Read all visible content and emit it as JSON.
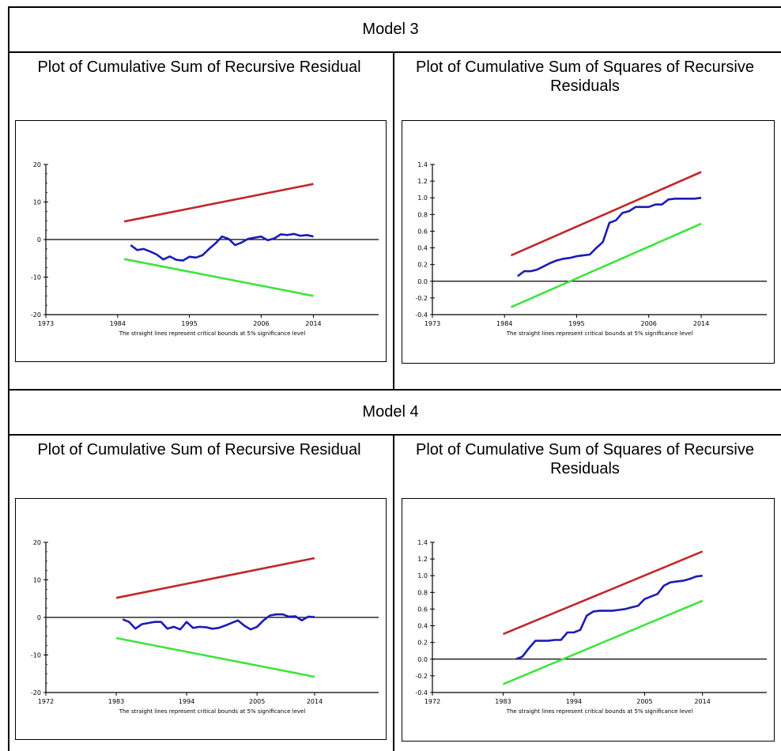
{
  "models": [
    {
      "title": "Model 3",
      "panels": [
        {
          "title": "Plot of Cumulative Sum of Recursive Residual",
          "chart_data": {
            "type": "line",
            "note": "The straight lines represent critical bounds at 5% significance level",
            "xlim": [
              1973,
              2024
            ],
            "ylim": [
              -20,
              20
            ],
            "xticks": [
              1973,
              1984,
              1995,
              2006,
              2014
            ],
            "yticks": [
              20,
              10,
              0,
              -10,
              -20
            ],
            "ytick_labels": [
              "20",
              "10",
              "0",
              "-10",
              "-20"
            ],
            "zero_line": 0,
            "series": [
              {
                "color": "#c0282a",
                "x": [
                  1985,
                  2014
                ],
                "y": [
                  4.8,
                  14.8
                ]
              },
              {
                "color": "#3ee43e",
                "x": [
                  1985,
                  2014
                ],
                "y": [
                  -5.2,
                  -15.0
                ]
              },
              {
                "color": "#1b1bb8",
                "x": [
                  1986,
                  1987,
                  1988,
                  1989,
                  1990,
                  1991,
                  1992,
                  1993,
                  1994,
                  1995,
                  1996,
                  1997,
                  1998,
                  1999,
                  2000,
                  2001,
                  2002,
                  2003,
                  2004,
                  2005,
                  2006,
                  2007,
                  2008,
                  2009,
                  2010,
                  2011,
                  2012,
                  2013,
                  2014
                ],
                "y": [
                  -1.5,
                  -2.8,
                  -2.5,
                  -3.2,
                  -4.0,
                  -5.3,
                  -4.5,
                  -5.4,
                  -5.6,
                  -4.6,
                  -4.8,
                  -4.2,
                  -2.5,
                  -1.0,
                  0.8,
                  0.2,
                  -1.5,
                  -0.8,
                  0.2,
                  0.5,
                  0.8,
                  -0.2,
                  0.3,
                  1.4,
                  1.2,
                  1.5,
                  1.0,
                  1.2,
                  0.8
                ]
              }
            ]
          }
        },
        {
          "title": "Plot of Cumulative Sum of Squares of Recursive Residuals",
          "chart_data": {
            "type": "line",
            "note": "The straight lines represent critical bounds at 5% significance level",
            "xlim": [
              1973,
              2024
            ],
            "ylim": [
              -0.4,
              1.4
            ],
            "xticks": [
              1973,
              1984,
              1995,
              2006,
              2014
            ],
            "yticks": [
              1.4,
              1.2,
              1.0,
              0.8,
              0.6,
              0.4,
              0.2,
              0.0,
              -0.2,
              -0.4
            ],
            "ytick_labels": [
              "1.4",
              "1.2",
              "1.0",
              "0.8",
              "0.6",
              "0.4",
              "0.2",
              "0.0",
              "-0.2",
              "-0.4"
            ],
            "zero_line": 0,
            "series": [
              {
                "color": "#c0282a",
                "x": [
                  1985,
                  2014
                ],
                "y": [
                  0.31,
                  1.31
                ]
              },
              {
                "color": "#3ee43e",
                "x": [
                  1985,
                  2014
                ],
                "y": [
                  -0.31,
                  0.69
                ]
              },
              {
                "color": "#1b1bb8",
                "x": [
                  1986,
                  1987,
                  1988,
                  1989,
                  1990,
                  1991,
                  1992,
                  1993,
                  1994,
                  1995,
                  1996,
                  1997,
                  1998,
                  1999,
                  2000,
                  2001,
                  2002,
                  2003,
                  2004,
                  2005,
                  2006,
                  2007,
                  2008,
                  2009,
                  2010,
                  2011,
                  2012,
                  2013,
                  2014
                ],
                "y": [
                  0.06,
                  0.12,
                  0.12,
                  0.14,
                  0.18,
                  0.22,
                  0.25,
                  0.27,
                  0.28,
                  0.3,
                  0.31,
                  0.32,
                  0.4,
                  0.47,
                  0.7,
                  0.73,
                  0.82,
                  0.84,
                  0.89,
                  0.89,
                  0.89,
                  0.92,
                  0.92,
                  0.98,
                  0.99,
                  0.99,
                  0.99,
                  0.99,
                  1.0
                ]
              }
            ]
          }
        }
      ]
    },
    {
      "title": "Model 4",
      "panels": [
        {
          "title": "Plot of Cumulative Sum of Recursive Residual",
          "chart_data": {
            "type": "line",
            "note": "The straight lines represent critical bounds at 5% significance level",
            "xlim": [
              1972,
              2024
            ],
            "ylim": [
              -20,
              20
            ],
            "xticks": [
              1972,
              1983,
              1994,
              2005,
              2014
            ],
            "yticks": [
              20,
              10,
              0,
              -10,
              -20
            ],
            "ytick_labels": [
              "20",
              "10",
              "0",
              "-10",
              "-20"
            ],
            "zero_line": 0,
            "series": [
              {
                "color": "#c0282a",
                "x": [
                  1983,
                  2014
                ],
                "y": [
                  5.2,
                  15.8
                ]
              },
              {
                "color": "#3ee43e",
                "x": [
                  1983,
                  2014
                ],
                "y": [
                  -5.5,
                  -15.8
                ]
              },
              {
                "color": "#1b1bb8",
                "x": [
                  1984,
                  1985,
                  1986,
                  1987,
                  1988,
                  1989,
                  1990,
                  1991,
                  1992,
                  1993,
                  1994,
                  1995,
                  1996,
                  1997,
                  1998,
                  1999,
                  2000,
                  2001,
                  2002,
                  2003,
                  2004,
                  2005,
                  2006,
                  2007,
                  2008,
                  2009,
                  2010,
                  2011,
                  2012,
                  2013,
                  2014
                ],
                "y": [
                  -0.5,
                  -1.2,
                  -3.0,
                  -1.8,
                  -1.5,
                  -1.2,
                  -1.2,
                  -3.0,
                  -2.5,
                  -3.2,
                  -1.2,
                  -2.8,
                  -2.5,
                  -2.6,
                  -3.0,
                  -2.8,
                  -2.2,
                  -1.5,
                  -0.8,
                  -2.2,
                  -3.2,
                  -2.5,
                  -0.8,
                  0.5,
                  0.8,
                  0.8,
                  0.2,
                  0.3,
                  -0.8,
                  0.2,
                  0.1
                ]
              }
            ]
          }
        },
        {
          "title": "Plot of Cumulative Sum of Squares of Recursive Residuals",
          "chart_data": {
            "type": "line",
            "note": "The straight lines represent critical bounds at 5% significance level",
            "xlim": [
              1972,
              2024
            ],
            "ylim": [
              -0.4,
              1.4
            ],
            "xticks": [
              1972,
              1983,
              1994,
              2005,
              2014
            ],
            "yticks": [
              1.4,
              1.2,
              1.0,
              0.8,
              0.6,
              0.4,
              0.2,
              0.0,
              -0.2,
              -0.4
            ],
            "ytick_labels": [
              "1.4",
              "1.2",
              "1.0",
              "0.8",
              "0.6",
              "0.4",
              "0.2",
              "0.0",
              "-0.2",
              "-0.4"
            ],
            "zero_line": 0,
            "series": [
              {
                "color": "#c0282a",
                "x": [
                  1983,
                  2014
                ],
                "y": [
                  0.3,
                  1.29
                ]
              },
              {
                "color": "#3ee43e",
                "x": [
                  1983,
                  2014
                ],
                "y": [
                  -0.3,
                  0.7
                ]
              },
              {
                "color": "#1b1bb8",
                "x": [
                  1985,
                  1986,
                  1987,
                  1988,
                  1989,
                  1990,
                  1991,
                  1992,
                  1993,
                  1994,
                  1995,
                  1996,
                  1997,
                  1998,
                  1999,
                  2000,
                  2001,
                  2002,
                  2003,
                  2004,
                  2005,
                  2006,
                  2007,
                  2008,
                  2009,
                  2010,
                  2011,
                  2012,
                  2013,
                  2014
                ],
                "y": [
                  0.0,
                  0.03,
                  0.13,
                  0.22,
                  0.22,
                  0.22,
                  0.23,
                  0.23,
                  0.32,
                  0.32,
                  0.35,
                  0.52,
                  0.57,
                  0.58,
                  0.58,
                  0.58,
                  0.59,
                  0.6,
                  0.62,
                  0.64,
                  0.72,
                  0.75,
                  0.78,
                  0.88,
                  0.92,
                  0.93,
                  0.94,
                  0.96,
                  0.99,
                  1.0
                ]
              }
            ]
          }
        }
      ]
    }
  ]
}
